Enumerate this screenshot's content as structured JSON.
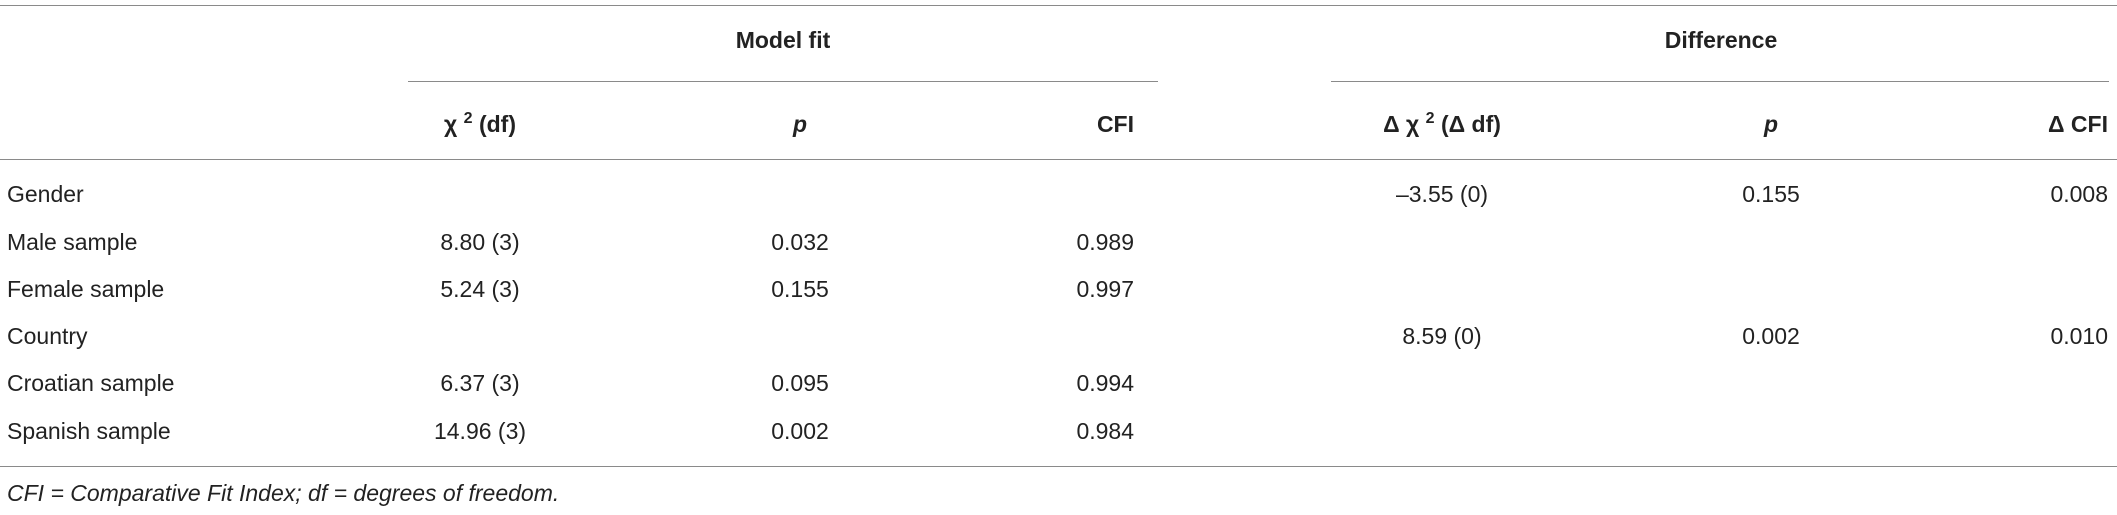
{
  "table": {
    "groups": [
      "Model fit",
      "Difference"
    ],
    "columns": [
      {
        "pre": "χ",
        "sup": "2",
        "post": "(df)"
      },
      {
        "text": "p",
        "italic": true
      },
      {
        "text": "CFI"
      },
      {
        "pre": "Δ χ",
        "sup": "2",
        "post": "(Δ df)"
      },
      {
        "text": "p",
        "italic": true
      },
      {
        "text": "Δ CFI"
      }
    ],
    "rows": [
      {
        "label": "Gender",
        "cells": [
          null,
          null,
          null,
          "–3.55 (0)",
          "0.155",
          "0.008"
        ]
      },
      {
        "label": "Male sample",
        "cells": [
          "8.80 (3)",
          "0.032",
          "0.989",
          null,
          null,
          null
        ]
      },
      {
        "label": "Female sample",
        "cells": [
          "5.24 (3)",
          "0.155",
          "0.997",
          null,
          null,
          null
        ]
      },
      {
        "label": "Country",
        "cells": [
          null,
          null,
          null,
          "8.59 (0)",
          "0.002",
          "0.010"
        ]
      },
      {
        "label": "Croatian sample",
        "cells": [
          "6.37 (3)",
          "0.095",
          "0.994",
          null,
          null,
          null
        ]
      },
      {
        "label": "Spanish sample",
        "cells": [
          "14.96 (3)",
          "0.002",
          "0.984",
          null,
          null,
          null
        ]
      }
    ]
  },
  "footnote": "CFI = Comparative Fit Index; df = degrees of freedom."
}
